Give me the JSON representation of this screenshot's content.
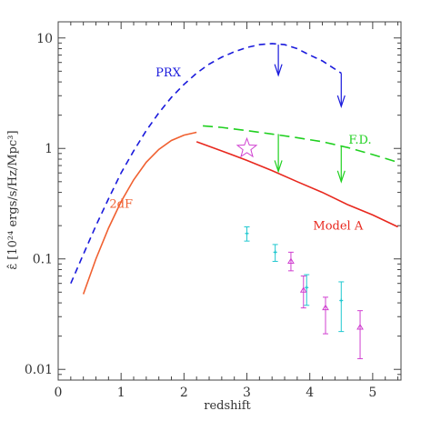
{
  "chart_data": {
    "type": "line",
    "title": "",
    "xlabel": "redshift",
    "ylabel": "ε̂ [10²⁴ ergs/s/Hz/Mpc³]",
    "xlim": [
      0,
      5.45
    ],
    "ylim": [
      0.008,
      14
    ],
    "yscale": "log",
    "grid": false,
    "legend": "none",
    "xticks": [
      0,
      1,
      2,
      3,
      4,
      5
    ],
    "xtick_labels": [
      "0",
      "1",
      "2",
      "3",
      "4",
      "5"
    ],
    "yticks": [
      0.01,
      0.1,
      1,
      10
    ],
    "ytick_labels": [
      "0.01",
      "0.1",
      "1",
      "10"
    ],
    "series": [
      {
        "name": "PRX",
        "style": "dashed",
        "color": "#1a1adc",
        "x": [
          0.2,
          0.4,
          0.6,
          0.8,
          1.0,
          1.2,
          1.4,
          1.6,
          1.8,
          2.0,
          2.2,
          2.4,
          2.6,
          2.8,
          3.0,
          3.2,
          3.4,
          3.6,
          3.8,
          4.0,
          4.2,
          4.5
        ],
        "y": [
          0.06,
          0.11,
          0.2,
          0.35,
          0.6,
          0.95,
          1.45,
          2.1,
          2.9,
          3.8,
          4.8,
          5.8,
          6.7,
          7.5,
          8.2,
          8.7,
          8.9,
          8.7,
          8.0,
          7.0,
          6.2,
          4.8
        ]
      },
      {
        "name": "2dF",
        "style": "solid",
        "color": "#f06030",
        "x": [
          0.4,
          0.6,
          0.8,
          1.0,
          1.2,
          1.4,
          1.6,
          1.8,
          2.0,
          2.2
        ],
        "y": [
          0.048,
          0.1,
          0.19,
          0.33,
          0.52,
          0.75,
          0.98,
          1.18,
          1.32,
          1.4
        ]
      },
      {
        "name": "Model A",
        "style": "solid",
        "color": "#e8281e",
        "x": [
          2.2,
          2.6,
          3.0,
          3.4,
          3.8,
          4.2,
          4.6,
          5.0,
          5.4
        ],
        "y": [
          1.15,
          0.95,
          0.78,
          0.63,
          0.5,
          0.4,
          0.31,
          0.25,
          0.195
        ]
      },
      {
        "name": "F.D.",
        "style": "long-dashed",
        "color": "#20d020",
        "x": [
          2.3,
          2.6,
          3.0,
          3.4,
          3.8,
          4.2,
          4.6,
          5.0,
          5.4
        ],
        "y": [
          1.6,
          1.55,
          1.45,
          1.35,
          1.25,
          1.15,
          1.02,
          0.88,
          0.75
        ]
      }
    ],
    "upper_limits": [
      {
        "series": "PRX",
        "x": 3.5,
        "y_from": 8.7,
        "y_to": 4.6,
        "color": "#1a1adc"
      },
      {
        "series": "PRX",
        "x": 4.5,
        "y_from": 4.8,
        "y_to": 2.4,
        "color": "#1a1adc"
      },
      {
        "series": "F.D.",
        "x": 3.5,
        "y_from": 1.35,
        "y_to": 0.62,
        "color": "#20d020"
      },
      {
        "series": "F.D.",
        "x": 4.5,
        "y_from": 1.05,
        "y_to": 0.5,
        "color": "#20d020"
      }
    ],
    "points_cyan": {
      "color": "#20c8d0",
      "marker": "cross",
      "data": [
        {
          "x": 3.0,
          "y": 0.17,
          "lo": 0.145,
          "hi": 0.195
        },
        {
          "x": 3.45,
          "y": 0.115,
          "lo": 0.095,
          "hi": 0.135
        },
        {
          "x": 3.95,
          "y": 0.055,
          "lo": 0.038,
          "hi": 0.072
        },
        {
          "x": 4.5,
          "y": 0.042,
          "lo": 0.022,
          "hi": 0.062
        }
      ]
    },
    "points_magenta": {
      "color": "#d040d0",
      "marker": "triangle",
      "data": [
        {
          "x": 3.7,
          "y": 0.095,
          "lo": 0.078,
          "hi": 0.115
        },
        {
          "x": 3.9,
          "y": 0.052,
          "lo": 0.036,
          "hi": 0.07
        },
        {
          "x": 4.25,
          "y": 0.036,
          "lo": 0.021,
          "hi": 0.045
        },
        {
          "x": 4.8,
          "y": 0.024,
          "lo": 0.0125,
          "hi": 0.034
        }
      ]
    },
    "star": {
      "x": 3.0,
      "y": 1.0,
      "color": "#d040d0"
    },
    "annotations": [
      {
        "text": "PRX",
        "x": 1.75,
        "y": 4.5,
        "color": "#1a1adc"
      },
      {
        "text": "2dF",
        "x": 1.0,
        "y": 0.29,
        "color": "#f06030"
      },
      {
        "text": "F.D.",
        "x": 4.8,
        "y": 1.1,
        "color": "#20d020"
      },
      {
        "text": "Model A",
        "x": 4.45,
        "y": 0.185,
        "color": "#e8281e"
      }
    ]
  }
}
